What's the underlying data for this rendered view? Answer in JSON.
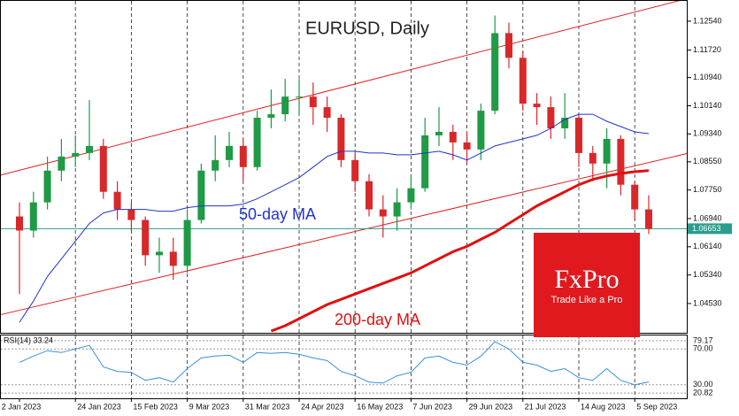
{
  "chart_data": {
    "type": "candlestick",
    "title": "EURUSD, Daily",
    "categories": [
      "2 Jan 2023",
      null,
      null,
      null,
      "24 Jan 2023",
      null,
      null,
      null,
      "15 Feb 2023",
      null,
      null,
      null,
      "9 Mar 2023",
      null,
      null,
      null,
      "31 Mar 2023",
      null,
      null,
      null,
      "24 Apr 2023",
      null,
      null,
      null,
      "16 May 2023",
      null,
      null,
      null,
      "7 Jun 2023",
      null,
      null,
      null,
      "29 Jun 2023",
      null,
      null,
      null,
      "21 Jul 2023",
      null,
      null,
      null,
      "14 Aug 2023",
      null,
      null,
      null,
      "5 Sep 2023",
      null
    ],
    "open": [
      1.07,
      1.066,
      1.074,
      1.083,
      1.087,
      1.088,
      1.09,
      1.077,
      1.072,
      1.069,
      1.059,
      1.06,
      1.056,
      1.069,
      1.083,
      1.086,
      1.09,
      1.084,
      1.098,
      1.099,
      1.104,
      1.104,
      1.101,
      1.098,
      1.086,
      1.08,
      1.072,
      1.07,
      1.074,
      1.078,
      1.093,
      1.094,
      1.091,
      1.089,
      1.1,
      1.122,
      1.115,
      1.102,
      1.101,
      1.095,
      1.098,
      1.088,
      1.085,
      1.092,
      1.079,
      1.072
    ],
    "high": [
      1.074,
      1.077,
      1.087,
      1.092,
      1.093,
      1.103,
      1.092,
      1.08,
      1.074,
      1.07,
      1.064,
      1.064,
      1.072,
      1.085,
      1.093,
      1.094,
      1.092,
      1.1,
      1.106,
      1.109,
      1.109,
      1.108,
      1.104,
      1.099,
      1.088,
      1.082,
      1.076,
      1.078,
      1.082,
      1.098,
      1.101,
      1.096,
      1.094,
      1.102,
      1.127,
      1.125,
      1.117,
      1.105,
      1.104,
      1.105,
      1.099,
      1.09,
      1.095,
      1.093,
      1.08,
      1.076
    ],
    "low": [
      1.048,
      1.064,
      1.072,
      1.08,
      1.084,
      1.086,
      1.075,
      1.069,
      1.066,
      1.056,
      1.054,
      1.052,
      1.054,
      1.068,
      1.08,
      1.084,
      1.08,
      1.083,
      1.095,
      1.097,
      1.099,
      1.096,
      1.094,
      1.084,
      1.077,
      1.07,
      1.064,
      1.066,
      1.072,
      1.077,
      1.09,
      1.086,
      1.085,
      1.086,
      1.099,
      1.112,
      1.1,
      1.096,
      1.092,
      1.092,
      1.084,
      1.08,
      1.078,
      1.076,
      1.069,
      1.065
    ],
    "close": [
      1.066,
      1.074,
      1.083,
      1.087,
      1.088,
      1.09,
      1.077,
      1.072,
      1.069,
      1.059,
      1.06,
      1.056,
      1.069,
      1.083,
      1.086,
      1.09,
      1.084,
      1.098,
      1.099,
      1.104,
      1.104,
      1.101,
      1.098,
      1.086,
      1.08,
      1.072,
      1.07,
      1.074,
      1.078,
      1.093,
      1.094,
      1.091,
      1.089,
      1.1,
      1.122,
      1.115,
      1.102,
      1.101,
      1.095,
      1.098,
      1.088,
      1.085,
      1.092,
      1.079,
      1.072,
      1.0665
    ],
    "up_color": "#1f9a45",
    "down_color": "#d8282a",
    "ylim": [
      1.037,
      1.1314
    ],
    "yticks": [
      {
        "value": 1.0453,
        "label": "1.04530"
      },
      {
        "value": 1.0534,
        "label": "1.05340"
      },
      {
        "value": 1.0614,
        "label": "1.06140"
      },
      {
        "value": 1.0694,
        "label": "1.06940"
      },
      {
        "value": 1.0775,
        "label": "1.07750"
      },
      {
        "value": 1.0855,
        "label": "1.08550"
      },
      {
        "value": 1.0934,
        "label": "1.09340"
      },
      {
        "value": 1.1014,
        "label": "1.10140"
      },
      {
        "value": 1.1094,
        "label": "1.10940"
      },
      {
        "value": 1.1172,
        "label": "1.11720"
      },
      {
        "value": 1.1254,
        "label": "1.12540"
      }
    ],
    "moving_averages": [
      {
        "name": "50-day MA",
        "color": "#2233cc",
        "values": [
          1.04,
          1.046,
          1.053,
          1.058,
          1.063,
          1.068,
          1.071,
          1.072,
          1.072,
          1.072,
          1.0715,
          1.0715,
          1.0725,
          1.073,
          1.073,
          1.073,
          1.0735,
          1.075,
          1.077,
          1.079,
          1.081,
          1.084,
          1.087,
          1.0885,
          1.0885,
          1.088,
          1.088,
          1.0875,
          1.0875,
          1.088,
          1.0885,
          1.0875,
          1.086,
          1.088,
          1.09,
          1.091,
          1.092,
          1.093,
          1.095,
          1.0975,
          1.099,
          1.099,
          1.097,
          1.0955,
          1.094,
          1.0935
        ]
      },
      {
        "name": "200-day MA",
        "color": "#e01010",
        "values": [
          null,
          null,
          null,
          null,
          null,
          null,
          null,
          null,
          null,
          null,
          null,
          null,
          null,
          null,
          null,
          null,
          null,
          null,
          1.0375,
          1.039,
          1.041,
          1.043,
          1.045,
          1.0465,
          1.048,
          1.0495,
          1.051,
          1.0525,
          1.054,
          1.056,
          1.058,
          1.06,
          1.0615,
          1.0635,
          1.0655,
          1.068,
          1.0705,
          1.073,
          1.075,
          1.077,
          1.079,
          1.0805,
          1.0815,
          1.0822,
          1.0827,
          1.083
        ]
      }
    ],
    "channel_color": "#e02020",
    "channel": [
      [
        1.0831,
        1.129
      ],
      [
        1.0434,
        1.0853
      ]
    ],
    "last_price": 1.06653,
    "last_price_color": "#2a9d8f",
    "rsi": {
      "title": "RSI(14) 33.24",
      "color": "#3a8fd8",
      "values": [
        55,
        62,
        68,
        66,
        70,
        74,
        50,
        45,
        44,
        35,
        38,
        33,
        48,
        60,
        62,
        63,
        55,
        66,
        65,
        66,
        64,
        60,
        57,
        45,
        40,
        33,
        32,
        40,
        44,
        60,
        62,
        55,
        52,
        62,
        78,
        70,
        55,
        52,
        45,
        48,
        38,
        35,
        48,
        35,
        30,
        33.24
      ],
      "ylim": [
        15,
        85
      ],
      "yticks": [
        79.17,
        {
          "value": 70,
          "label": "70.00"
        },
        {
          "value": 30,
          "label": "30.00"
        },
        20.82
      ]
    },
    "logo": {
      "brand": "FxPro",
      "tagline": "Trade Like a Pro"
    }
  }
}
